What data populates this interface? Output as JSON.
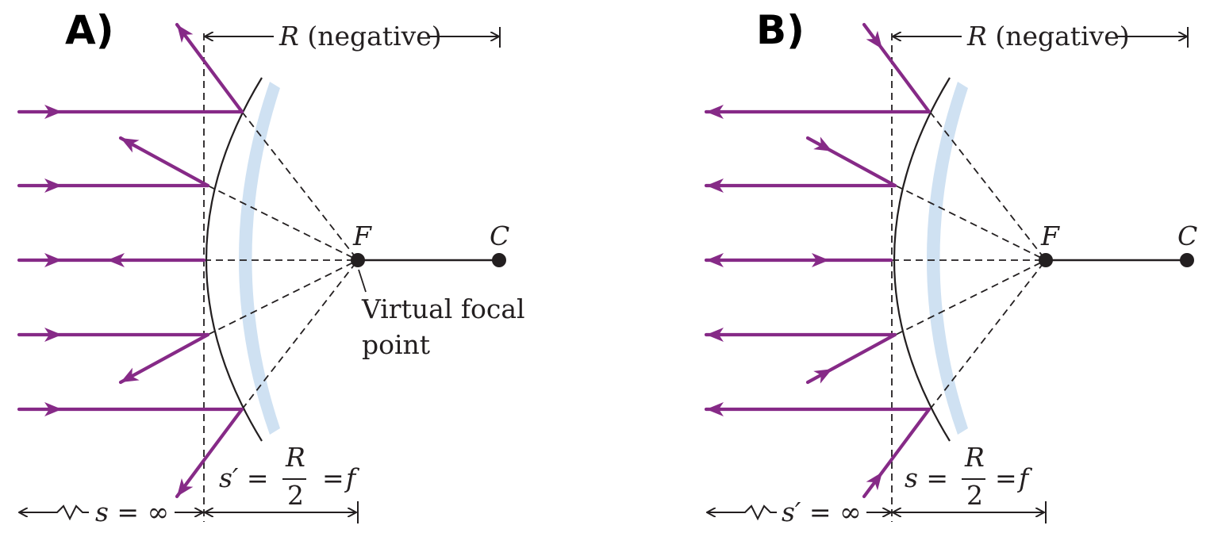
{
  "panels": [
    {
      "id": "A",
      "letter": "A)",
      "r_label_symbol": "R",
      "r_label_text": " (negative)",
      "f_label": "F",
      "c_label": "C",
      "virtual_label_line1": "Virtual focal",
      "virtual_label_line2": "point",
      "s_prefix": "s",
      "s_suffix": " = ∞",
      "sp_lhs": "s′ =",
      "frac_num": "R",
      "frac_den": "2",
      "sp_rhs_eq": "=",
      "sp_rhs_f": "f",
      "direction": "incoming-from-left"
    },
    {
      "id": "B",
      "letter": "B)",
      "r_label_symbol": "R",
      "r_label_text": " (negative)",
      "f_label": "F",
      "c_label": "C",
      "s_prefix": "s′",
      "s_suffix": " = ∞",
      "sp_lhs": "s =",
      "frac_num": "R",
      "frac_den": "2",
      "sp_rhs_eq": "=",
      "sp_rhs_f": "f",
      "direction": "reversed"
    }
  ],
  "colors": {
    "ray": "#862a87",
    "mirror": "#cfe1f2",
    "line": "#231f20"
  }
}
